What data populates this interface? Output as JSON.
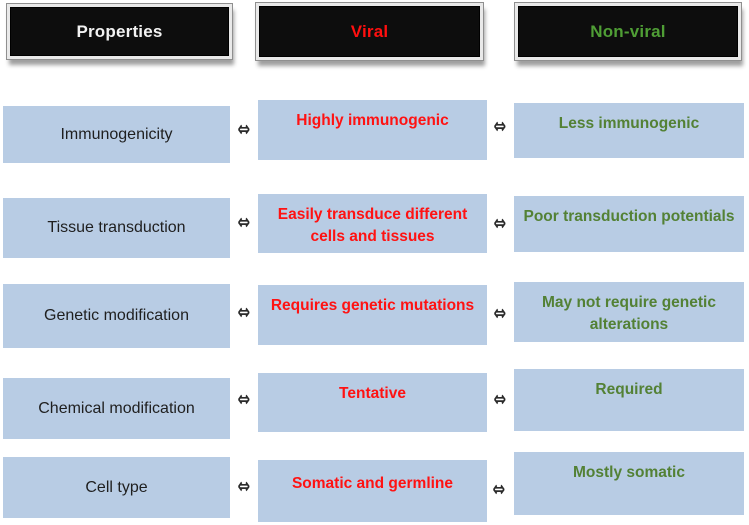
{
  "diagram": {
    "description": "Comparison of viral and non-viral gene delivery vector properties",
    "colors": {
      "cell_blue": "#b8cce4",
      "header_background": "#0d0d0d",
      "header_frame": "#e9e9e9",
      "properties_text": "#f2f2f2",
      "viral_red": "#ff0f0f",
      "nonviral_header_green": "#4f9e35",
      "nonviral_body_green": "#538135",
      "property_body_text": "#1f1f1f",
      "arrow": "#2b2b2b"
    }
  },
  "headers": {
    "properties": "Properties",
    "viral": "Viral",
    "nonviral": "Non-viral"
  },
  "arrow": {
    "glyph": "⇔"
  },
  "rows": [
    {
      "property": "Immunogenicity",
      "viral": "Highly immunogenic",
      "nonviral": "Less immunogenic"
    },
    {
      "property": "Tissue transduction",
      "viral": "Easily transduce different cells and tissues",
      "nonviral": "Poor transduction potentials"
    },
    {
      "property": "Genetic modification",
      "viral": "Requires genetic mutations",
      "nonviral": "May not require genetic alterations"
    },
    {
      "property": "Chemical modification",
      "viral": "Tentative",
      "nonviral": "Required"
    },
    {
      "property": "Cell type",
      "viral": "Somatic and germline",
      "nonviral": "Mostly somatic"
    }
  ]
}
